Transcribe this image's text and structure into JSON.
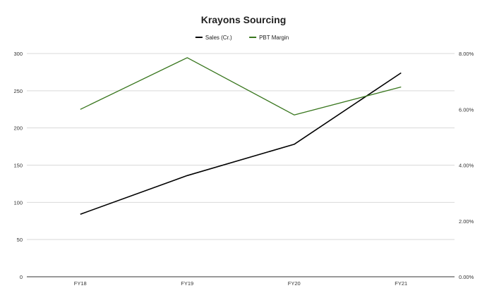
{
  "chart_data": {
    "type": "line",
    "title": "Krayons Sourcing",
    "categories": [
      "FY18",
      "FY19",
      "FY20",
      "FY21"
    ],
    "series": [
      {
        "name": "Sales (Cr.)",
        "axis": "left",
        "color": "#000000",
        "values": [
          84,
          136,
          178,
          274
        ]
      },
      {
        "name": "PBT Margin",
        "axis": "right",
        "color": "#38761d",
        "values": [
          0.06,
          0.0785,
          0.058,
          0.068
        ]
      }
    ],
    "y_left": {
      "min": 0,
      "max": 300,
      "ticks": [
        "0",
        "50",
        "100",
        "150",
        "200",
        "250",
        "300"
      ]
    },
    "y_right": {
      "min": 0,
      "max": 0.08,
      "ticks": [
        "0.00%",
        "2.00%",
        "4.00%",
        "6.00%",
        "8.00%"
      ]
    },
    "grid": true,
    "legend_position": "top"
  }
}
